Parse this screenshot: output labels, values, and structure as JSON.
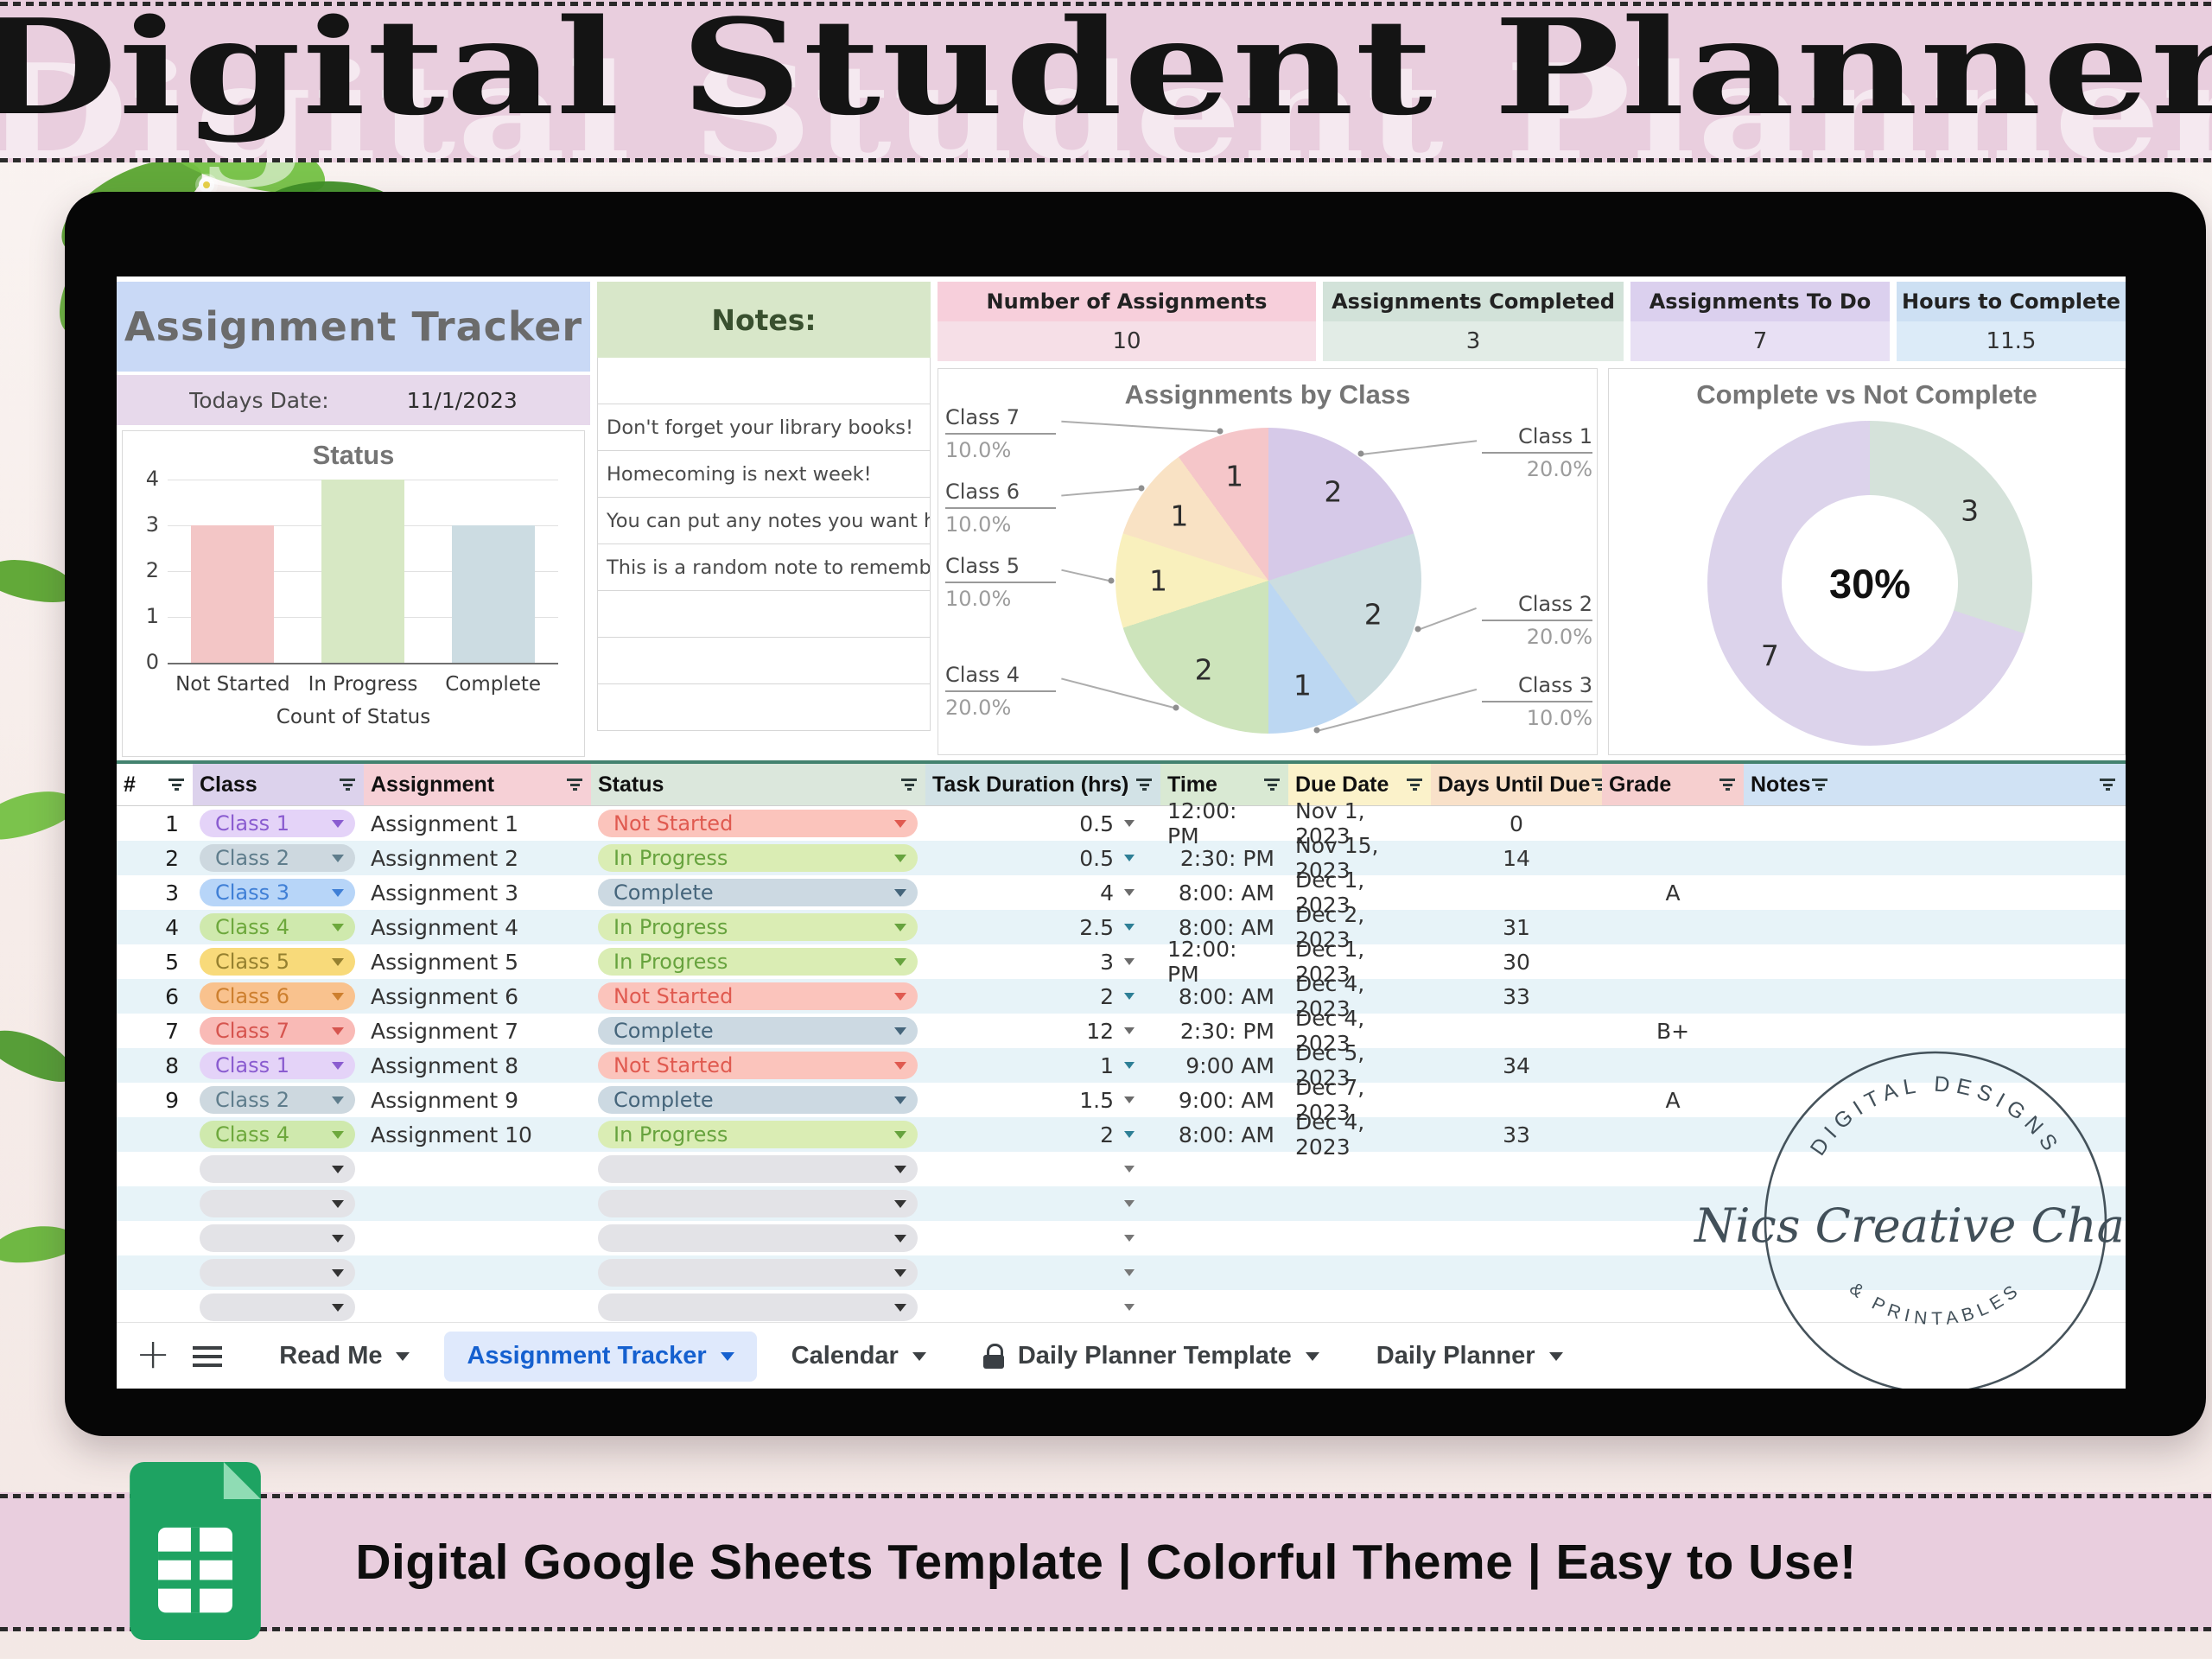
{
  "top_banner": {
    "title": "Digital Student Planner"
  },
  "bottom_banner": {
    "text": "Digital Google Sheets Template | Colorful Theme | Easy to Use!",
    "icon": "google-sheets-icon"
  },
  "watermark": {
    "top": "DIGITAL DESIGNS",
    "middle": "Nics Creative Chaos",
    "bottom": "& PRINTABLES"
  },
  "sheet": {
    "title": "Assignment Tracker",
    "date_label": "Todays Date:",
    "date_value": "11/1/2023",
    "notes": {
      "header": "Notes:",
      "items": [
        "Don't forget your library books!",
        "Homecoming is next week!",
        "You can put any notes you want here.",
        "This is a random note to remember"
      ]
    },
    "stats": [
      {
        "label": "Number of Assignments",
        "value": "10",
        "bg": "#f7cfdb",
        "bg2": "#f6dfe7"
      },
      {
        "label": "Assignments Completed",
        "value": "3",
        "bg": "#d2e2d9",
        "bg2": "#e2ece6"
      },
      {
        "label": "Assignments To Do",
        "value": "7",
        "bg": "#dbd0ee",
        "bg2": "#e8e0f4"
      },
      {
        "label": "Hours to Complete",
        "value": "11.5",
        "bg": "#cde0f3",
        "bg2": "#dcebf8"
      }
    ],
    "class_colors": {
      "Class 1": {
        "bg": "#e4d3f8",
        "fg": "#8a5cd0"
      },
      "Class 2": {
        "bg": "#cdd8df",
        "fg": "#5f7d8c"
      },
      "Class 3": {
        "bg": "#b7d5f8",
        "fg": "#3f7fd6"
      },
      "Class 4": {
        "bg": "#cfe9ad",
        "fg": "#6da83c"
      },
      "Class 5": {
        "bg": "#f8da7a",
        "fg": "#95802f"
      },
      "Class 6": {
        "bg": "#f9c28e",
        "fg": "#cd7f2e"
      },
      "Class 7": {
        "bg": "#f9bab6",
        "fg": "#d6544e"
      }
    },
    "status_colors": {
      "Not Started": {
        "bg": "#fbc4bc",
        "fg": "#e05a50"
      },
      "In Progress": {
        "bg": "#daedb4",
        "fg": "#67a33e"
      },
      "Complete": {
        "bg": "#ccd9e2",
        "fg": "#45657b"
      }
    },
    "table": {
      "columns": [
        {
          "label": "#",
          "bg": "#ffffff"
        },
        {
          "label": "Class",
          "bg": "#dcd2ec"
        },
        {
          "label": "Assignment",
          "bg": "#f6d0d6"
        },
        {
          "label": "Status",
          "bg": "#dbe7dc"
        },
        {
          "label": "Task Duration (hrs)",
          "bg": "#d2e2e6"
        },
        {
          "label": "Time",
          "bg": "#d9e9d3"
        },
        {
          "label": "Due Date",
          "bg": "#fbf2ca"
        },
        {
          "label": "Days Until Due",
          "bg": "#f9e1c9"
        },
        {
          "label": "Grade",
          "bg": "#f6cfcf"
        },
        {
          "label": "Notes",
          "bg": "#d0e2f4"
        }
      ],
      "rows": [
        {
          "num": "1",
          "class": "Class 1",
          "assignment": "Assignment 1",
          "status": "Not Started",
          "duration": "0.5",
          "time": "12:00: PM",
          "due": "Nov 1, 2023",
          "days": "0",
          "grade": ""
        },
        {
          "num": "2",
          "class": "Class 2",
          "assignment": "Assignment 2",
          "status": "In Progress",
          "duration": "0.5",
          "time": "2:30: PM",
          "due": "Nov 15, 2023",
          "days": "14",
          "grade": ""
        },
        {
          "num": "3",
          "class": "Class 3",
          "assignment": "Assignment 3",
          "status": "Complete",
          "duration": "4",
          "time": "8:00: AM",
          "due": "Dec 1, 2023",
          "days": "",
          "grade": "A"
        },
        {
          "num": "4",
          "class": "Class 4",
          "assignment": "Assignment 4",
          "status": "In Progress",
          "duration": "2.5",
          "time": "8:00: AM",
          "due": "Dec 2, 2023",
          "days": "31",
          "grade": ""
        },
        {
          "num": "5",
          "class": "Class 5",
          "assignment": "Assignment 5",
          "status": "In Progress",
          "duration": "3",
          "time": "12:00: PM",
          "due": "Dec 1, 2023",
          "days": "30",
          "grade": ""
        },
        {
          "num": "6",
          "class": "Class 6",
          "assignment": "Assignment 6",
          "status": "Not Started",
          "duration": "2",
          "time": "8:00: AM",
          "due": "Dec 4, 2023",
          "days": "33",
          "grade": ""
        },
        {
          "num": "7",
          "class": "Class 7",
          "assignment": "Assignment 7",
          "status": "Complete",
          "duration": "12",
          "time": "2:30: PM",
          "due": "Dec 4, 2023",
          "days": "",
          "grade": "B+"
        },
        {
          "num": "8",
          "class": "Class 1",
          "assignment": "Assignment 8",
          "status": "Not Started",
          "duration": "1",
          "time": "9:00 AM",
          "due": "Dec 5, 2023",
          "days": "34",
          "grade": ""
        },
        {
          "num": "9",
          "class": "Class 2",
          "assignment": "Assignment 9",
          "status": "Complete",
          "duration": "1.5",
          "time": "9:00: AM",
          "due": "Dec 7, 2023",
          "days": "",
          "grade": "A"
        },
        {
          "num": "",
          "class": "Class 4",
          "assignment": "Assignment 10",
          "status": "In Progress",
          "duration": "2",
          "time": "8:00: AM",
          "due": "Dec 4, 2023",
          "days": "33",
          "grade": ""
        }
      ],
      "empty_rows": 5
    },
    "tabs": [
      {
        "label": "Read Me"
      },
      {
        "label": "Assignment Tracker",
        "active": true
      },
      {
        "label": "Calendar"
      },
      {
        "label": "Daily Planner Template",
        "locked": true
      },
      {
        "label": "Daily Planner"
      }
    ]
  },
  "chart_data": [
    {
      "type": "bar",
      "title": "Status",
      "categories": [
        "Not Started",
        "In Progress",
        "Complete"
      ],
      "values": [
        3,
        4,
        3
      ],
      "colors": [
        "#f3c6c6",
        "#d7e8c4",
        "#ccdce2"
      ],
      "xlabel": "Count of Status",
      "ylabel": "",
      "ylim": [
        0,
        4
      ],
      "yticks": [
        0,
        1,
        2,
        3,
        4
      ],
      "grid": true
    },
    {
      "type": "pie",
      "title": "Assignments by Class",
      "labels": [
        "Class 1",
        "Class 2",
        "Class 3",
        "Class 4",
        "Class 5",
        "Class 6",
        "Class 7"
      ],
      "values": [
        2,
        2,
        1,
        2,
        1,
        1,
        1
      ],
      "percents": [
        "20.0%",
        "20.0%",
        "10.0%",
        "20.0%",
        "10.0%",
        "10.0%",
        "10.0%"
      ],
      "colors": [
        "#d6c9e8",
        "#ccdde0",
        "#bcd7f2",
        "#cde4bb",
        "#f9f0bd",
        "#f9e2c4",
        "#f5c6c9"
      ]
    },
    {
      "type": "donut",
      "title": "Complete vs Not Complete",
      "labels": [
        "Complete",
        "Not Complete"
      ],
      "values": [
        3,
        7
      ],
      "colors": [
        "#d5e2da",
        "#dcd3eb"
      ],
      "center_label": "30%",
      "legend": "none"
    }
  ]
}
